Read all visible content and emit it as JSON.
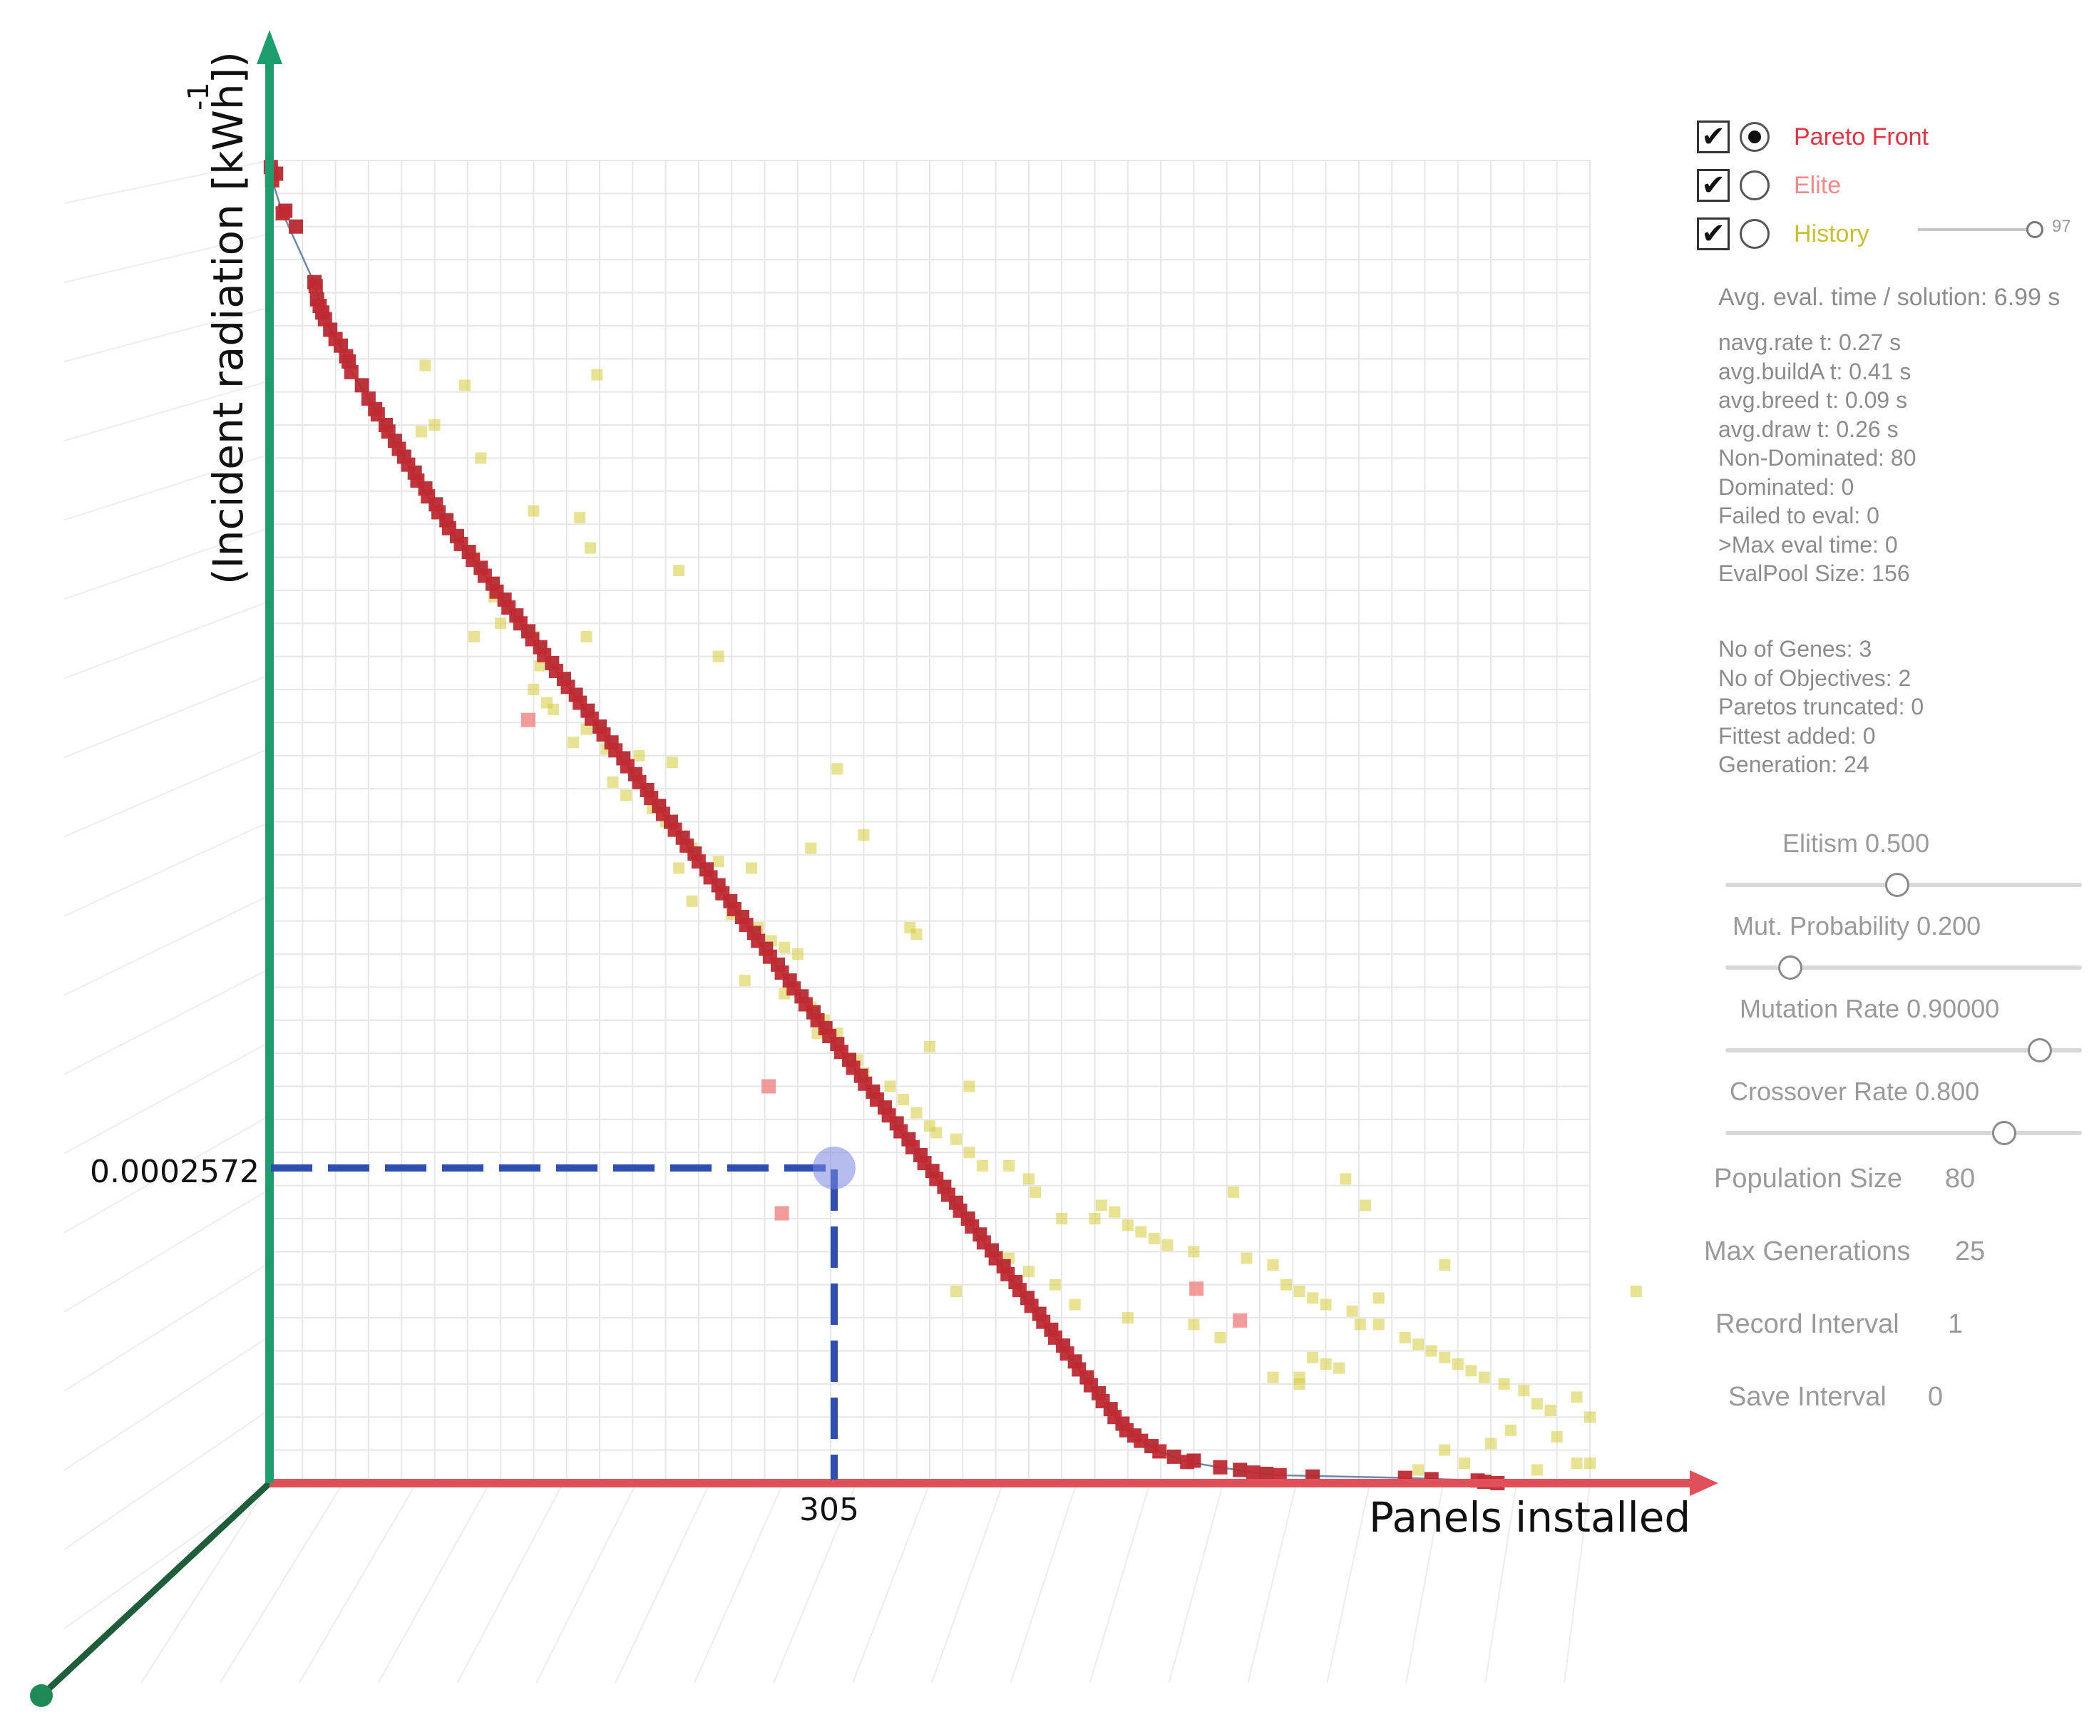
{
  "chart_data": {
    "type": "scatter",
    "xlabel": "Panels installed",
    "ylabel": "(Incident radiation [kWh])",
    "ylabel_exponent": "-1",
    "highlight": {
      "x": 305,
      "y_label": "0.0002572",
      "x_label": "305"
    },
    "xlim": [
      0,
      1000
    ],
    "ylim": [
      0,
      1000
    ],
    "pareto_front": [
      [
        1,
        995
      ],
      [
        2,
        985
      ],
      [
        10,
        960
      ],
      [
        35,
        905
      ],
      [
        38,
        890
      ],
      [
        42,
        880
      ],
      [
        50,
        865
      ],
      [
        58,
        852
      ],
      [
        62,
        840
      ],
      [
        75,
        820
      ],
      [
        82,
        808
      ],
      [
        90,
        795
      ],
      [
        98,
        782
      ],
      [
        105,
        770
      ],
      [
        112,
        758
      ],
      [
        120,
        746
      ],
      [
        128,
        734
      ],
      [
        136,
        722
      ],
      [
        145,
        710
      ],
      [
        154,
        698
      ],
      [
        163,
        686
      ],
      [
        172,
        674
      ],
      [
        181,
        662
      ],
      [
        190,
        650
      ],
      [
        199,
        638
      ],
      [
        208,
        626
      ],
      [
        217,
        614
      ],
      [
        226,
        602
      ],
      [
        235,
        590
      ],
      [
        244,
        578
      ],
      [
        253,
        566
      ],
      [
        262,
        554
      ],
      [
        271,
        542
      ],
      [
        280,
        530
      ],
      [
        289,
        518
      ],
      [
        298,
        506
      ],
      [
        307,
        494
      ],
      [
        316,
        482
      ],
      [
        325,
        470
      ],
      [
        334,
        458
      ],
      [
        343,
        446
      ],
      [
        352,
        434
      ],
      [
        361,
        422
      ],
      [
        370,
        410
      ],
      [
        379,
        398
      ],
      [
        388,
        386
      ],
      [
        397,
        374
      ],
      [
        406,
        362
      ],
      [
        415,
        350
      ],
      [
        424,
        338
      ],
      [
        433,
        326
      ],
      [
        442,
        314
      ],
      [
        451,
        302
      ],
      [
        460,
        290
      ],
      [
        469,
        278
      ],
      [
        478,
        266
      ],
      [
        487,
        254
      ],
      [
        496,
        242
      ],
      [
        505,
        230
      ],
      [
        514,
        218
      ],
      [
        523,
        206
      ],
      [
        532,
        194
      ],
      [
        541,
        182
      ],
      [
        550,
        170
      ],
      [
        559,
        158
      ],
      [
        568,
        146
      ],
      [
        577,
        134
      ],
      [
        586,
        122
      ],
      [
        595,
        110
      ],
      [
        604,
        98
      ],
      [
        613,
        86
      ],
      [
        622,
        74
      ],
      [
        631,
        62
      ],
      [
        640,
        50
      ],
      [
        649,
        40
      ],
      [
        660,
        32
      ],
      [
        674,
        24
      ],
      [
        695,
        16
      ],
      [
        720,
        12
      ],
      [
        745,
        8
      ],
      [
        765,
        6
      ],
      [
        860,
        4
      ],
      [
        915,
        2
      ],
      [
        930,
        0
      ]
    ],
    "pareto_front_tail": [
      [
        5,
        990
      ],
      [
        12,
        962
      ],
      [
        20,
        950
      ],
      [
        34,
        908
      ],
      [
        36,
        895
      ],
      [
        40,
        885
      ],
      [
        46,
        872
      ],
      [
        54,
        860
      ],
      [
        60,
        848
      ],
      [
        70,
        830
      ],
      [
        80,
        812
      ],
      [
        88,
        800
      ],
      [
        95,
        788
      ],
      [
        102,
        776
      ],
      [
        110,
        764
      ],
      [
        118,
        752
      ],
      [
        126,
        740
      ],
      [
        134,
        728
      ],
      [
        142,
        716
      ],
      [
        151,
        704
      ],
      [
        160,
        692
      ],
      [
        169,
        680
      ],
      [
        178,
        668
      ],
      [
        187,
        656
      ],
      [
        196,
        644
      ],
      [
        205,
        632
      ],
      [
        214,
        620
      ],
      [
        223,
        608
      ],
      [
        232,
        596
      ],
      [
        241,
        584
      ],
      [
        250,
        572
      ],
      [
        259,
        560
      ],
      [
        268,
        548
      ],
      [
        277,
        536
      ],
      [
        286,
        524
      ],
      [
        295,
        512
      ],
      [
        304,
        500
      ],
      [
        313,
        488
      ],
      [
        322,
        476
      ],
      [
        331,
        464
      ],
      [
        340,
        452
      ],
      [
        349,
        440
      ],
      [
        358,
        428
      ],
      [
        367,
        416
      ],
      [
        376,
        404
      ],
      [
        385,
        392
      ],
      [
        394,
        380
      ],
      [
        403,
        368
      ],
      [
        412,
        356
      ],
      [
        421,
        344
      ],
      [
        430,
        332
      ],
      [
        439,
        320
      ],
      [
        448,
        308
      ],
      [
        457,
        296
      ],
      [
        466,
        284
      ],
      [
        475,
        272
      ],
      [
        484,
        260
      ],
      [
        493,
        248
      ],
      [
        502,
        236
      ],
      [
        511,
        224
      ],
      [
        520,
        212
      ],
      [
        529,
        200
      ],
      [
        538,
        188
      ],
      [
        547,
        176
      ],
      [
        556,
        164
      ],
      [
        565,
        152
      ],
      [
        574,
        140
      ],
      [
        583,
        128
      ],
      [
        592,
        116
      ],
      [
        601,
        104
      ],
      [
        610,
        92
      ],
      [
        619,
        80
      ],
      [
        628,
        68
      ],
      [
        637,
        56
      ],
      [
        646,
        45
      ],
      [
        655,
        36
      ],
      [
        668,
        28
      ],
      [
        685,
        20
      ],
      [
        700,
        17
      ],
      [
        735,
        10
      ],
      [
        755,
        7
      ],
      [
        790,
        5
      ],
      [
        880,
        3
      ],
      [
        920,
        1
      ]
    ],
    "elite": [
      [
        196,
        577
      ],
      [
        388,
        204
      ],
      [
        702,
        147
      ],
      [
        735,
        123
      ],
      [
        378,
        300
      ]
    ],
    "history": [
      [
        118,
        845
      ],
      [
        248,
        838
      ],
      [
        148,
        830
      ],
      [
        125,
        800
      ],
      [
        115,
        795
      ],
      [
        160,
        775
      ],
      [
        200,
        735
      ],
      [
        235,
        730
      ],
      [
        155,
        700
      ],
      [
        243,
        707
      ],
      [
        310,
        690
      ],
      [
        170,
        670
      ],
      [
        175,
        650
      ],
      [
        155,
        640
      ],
      [
        200,
        640
      ],
      [
        240,
        640
      ],
      [
        340,
        625
      ],
      [
        205,
        618
      ],
      [
        200,
        600
      ],
      [
        210,
        590
      ],
      [
        215,
        585
      ],
      [
        240,
        570
      ],
      [
        230,
        560
      ],
      [
        255,
        555
      ],
      [
        280,
        550
      ],
      [
        305,
        545
      ],
      [
        260,
        530
      ],
      [
        270,
        520
      ],
      [
        290,
        510
      ],
      [
        300,
        500
      ],
      [
        320,
        480
      ],
      [
        340,
        470
      ],
      [
        310,
        465
      ],
      [
        365,
        465
      ],
      [
        430,
        540
      ],
      [
        450,
        490
      ],
      [
        410,
        480
      ],
      [
        485,
        420
      ],
      [
        490,
        415
      ],
      [
        390,
        405
      ],
      [
        400,
        400
      ],
      [
        320,
        440
      ],
      [
        350,
        430
      ],
      [
        370,
        420
      ],
      [
        380,
        410
      ],
      [
        420,
        350
      ],
      [
        445,
        320
      ],
      [
        500,
        330
      ],
      [
        530,
        300
      ],
      [
        360,
        380
      ],
      [
        390,
        370
      ],
      [
        410,
        360
      ],
      [
        415,
        340
      ],
      [
        430,
        340
      ],
      [
        440,
        320
      ],
      [
        450,
        310
      ],
      [
        470,
        300
      ],
      [
        480,
        290
      ],
      [
        490,
        280
      ],
      [
        500,
        270
      ],
      [
        505,
        265
      ],
      [
        520,
        260
      ],
      [
        530,
        250
      ],
      [
        540,
        240
      ],
      [
        560,
        240
      ],
      [
        575,
        230
      ],
      [
        580,
        220
      ],
      [
        600,
        200
      ],
      [
        625,
        200
      ],
      [
        630,
        210
      ],
      [
        640,
        205
      ],
      [
        650,
        195
      ],
      [
        660,
        190
      ],
      [
        670,
        185
      ],
      [
        680,
        180
      ],
      [
        700,
        175
      ],
      [
        730,
        220
      ],
      [
        740,
        170
      ],
      [
        760,
        165
      ],
      [
        770,
        150
      ],
      [
        780,
        145
      ],
      [
        790,
        140
      ],
      [
        800,
        135
      ],
      [
        820,
        130
      ],
      [
        840,
        120
      ],
      [
        860,
        110
      ],
      [
        870,
        105
      ],
      [
        880,
        100
      ],
      [
        890,
        95
      ],
      [
        900,
        90
      ],
      [
        910,
        85
      ],
      [
        920,
        80
      ],
      [
        935,
        75
      ],
      [
        950,
        70
      ],
      [
        960,
        60
      ],
      [
        970,
        55
      ],
      [
        990,
        65
      ],
      [
        1000,
        50
      ],
      [
        1000,
        15
      ],
      [
        1035,
        145
      ],
      [
        990,
        15
      ],
      [
        960,
        10
      ],
      [
        890,
        165
      ],
      [
        940,
        40
      ],
      [
        975,
        35
      ],
      [
        780,
        80
      ],
      [
        790,
        95
      ],
      [
        800,
        90
      ],
      [
        810,
        87
      ],
      [
        826,
        120
      ],
      [
        840,
        140
      ],
      [
        815,
        230
      ],
      [
        830,
        210
      ],
      [
        520,
        145
      ],
      [
        560,
        170
      ],
      [
        575,
        160
      ],
      [
        595,
        150
      ],
      [
        610,
        135
      ],
      [
        650,
        125
      ],
      [
        700,
        120
      ],
      [
        720,
        110
      ],
      [
        760,
        80
      ],
      [
        780,
        75
      ],
      [
        870,
        10
      ],
      [
        890,
        25
      ],
      [
        905,
        15
      ],
      [
        925,
        30
      ]
    ]
  },
  "legend": {
    "pareto_label": "Pareto Front",
    "elite_label": "Elite",
    "history_label": "History",
    "history_value": "97",
    "colors": {
      "pareto": "#e8323f",
      "elite": "#f08a8a",
      "history": "#d4cc3a"
    }
  },
  "stats": {
    "avg_eval": "Avg. eval. time / solution: 6.99 s",
    "lines_a": [
      "navg.rate t: 0.27 s",
      "avg.buildA t: 0.41 s",
      "avg.breed t: 0.09 s",
      "avg.draw t: 0.26 s",
      "Non-Dominated: 80",
      "Dominated: 0",
      "Failed to eval: 0",
      ">Max eval time: 0",
      "EvalPool Size: 156"
    ],
    "lines_b": [
      "No of Genes: 3",
      "No of Objectives: 2",
      "Paretos truncated: 0",
      "Fittest added: 0",
      "Generation: 24"
    ]
  },
  "params": {
    "elitism": "Elitism  0.500",
    "elitism_value": 0.5,
    "mut_prob": "Mut. Probability 0.200",
    "mut_prob_value": 0.2,
    "mut_rate": "Mutation Rate  0.90000",
    "mut_rate_value": 0.9,
    "crossover": "Crossover Rate  0.800",
    "crossover_value": 0.8,
    "population_label": "Population Size",
    "population_value": "80",
    "max_gen_label": "Max Generations",
    "max_gen_value": "25",
    "record_label": "Record Interval",
    "record_value": "1",
    "save_label": "Save Interval",
    "save_value": "0"
  }
}
